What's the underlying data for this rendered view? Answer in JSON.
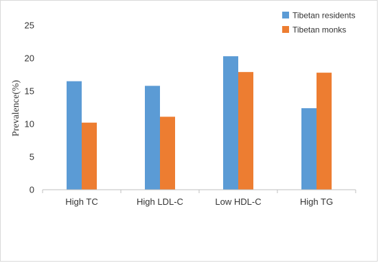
{
  "chart_data": {
    "type": "bar",
    "title": "",
    "xlabel": "",
    "ylabel": "Prevalence(%)",
    "categories": [
      "High TC",
      "High LDL-C",
      "Low HDL-C",
      "High TG"
    ],
    "series": [
      {
        "name": "Tibetan residents",
        "values": [
          16.5,
          15.8,
          20.3,
          12.4
        ],
        "color": "#5b9bd5"
      },
      {
        "name": "Tibetan monks",
        "values": [
          10.2,
          11.1,
          17.9,
          17.8
        ],
        "color": "#ed7d31"
      }
    ],
    "ylim": [
      0,
      25
    ],
    "yticks": [
      0,
      5,
      10,
      15,
      20,
      25
    ],
    "grid": false,
    "legend": "top-right"
  }
}
